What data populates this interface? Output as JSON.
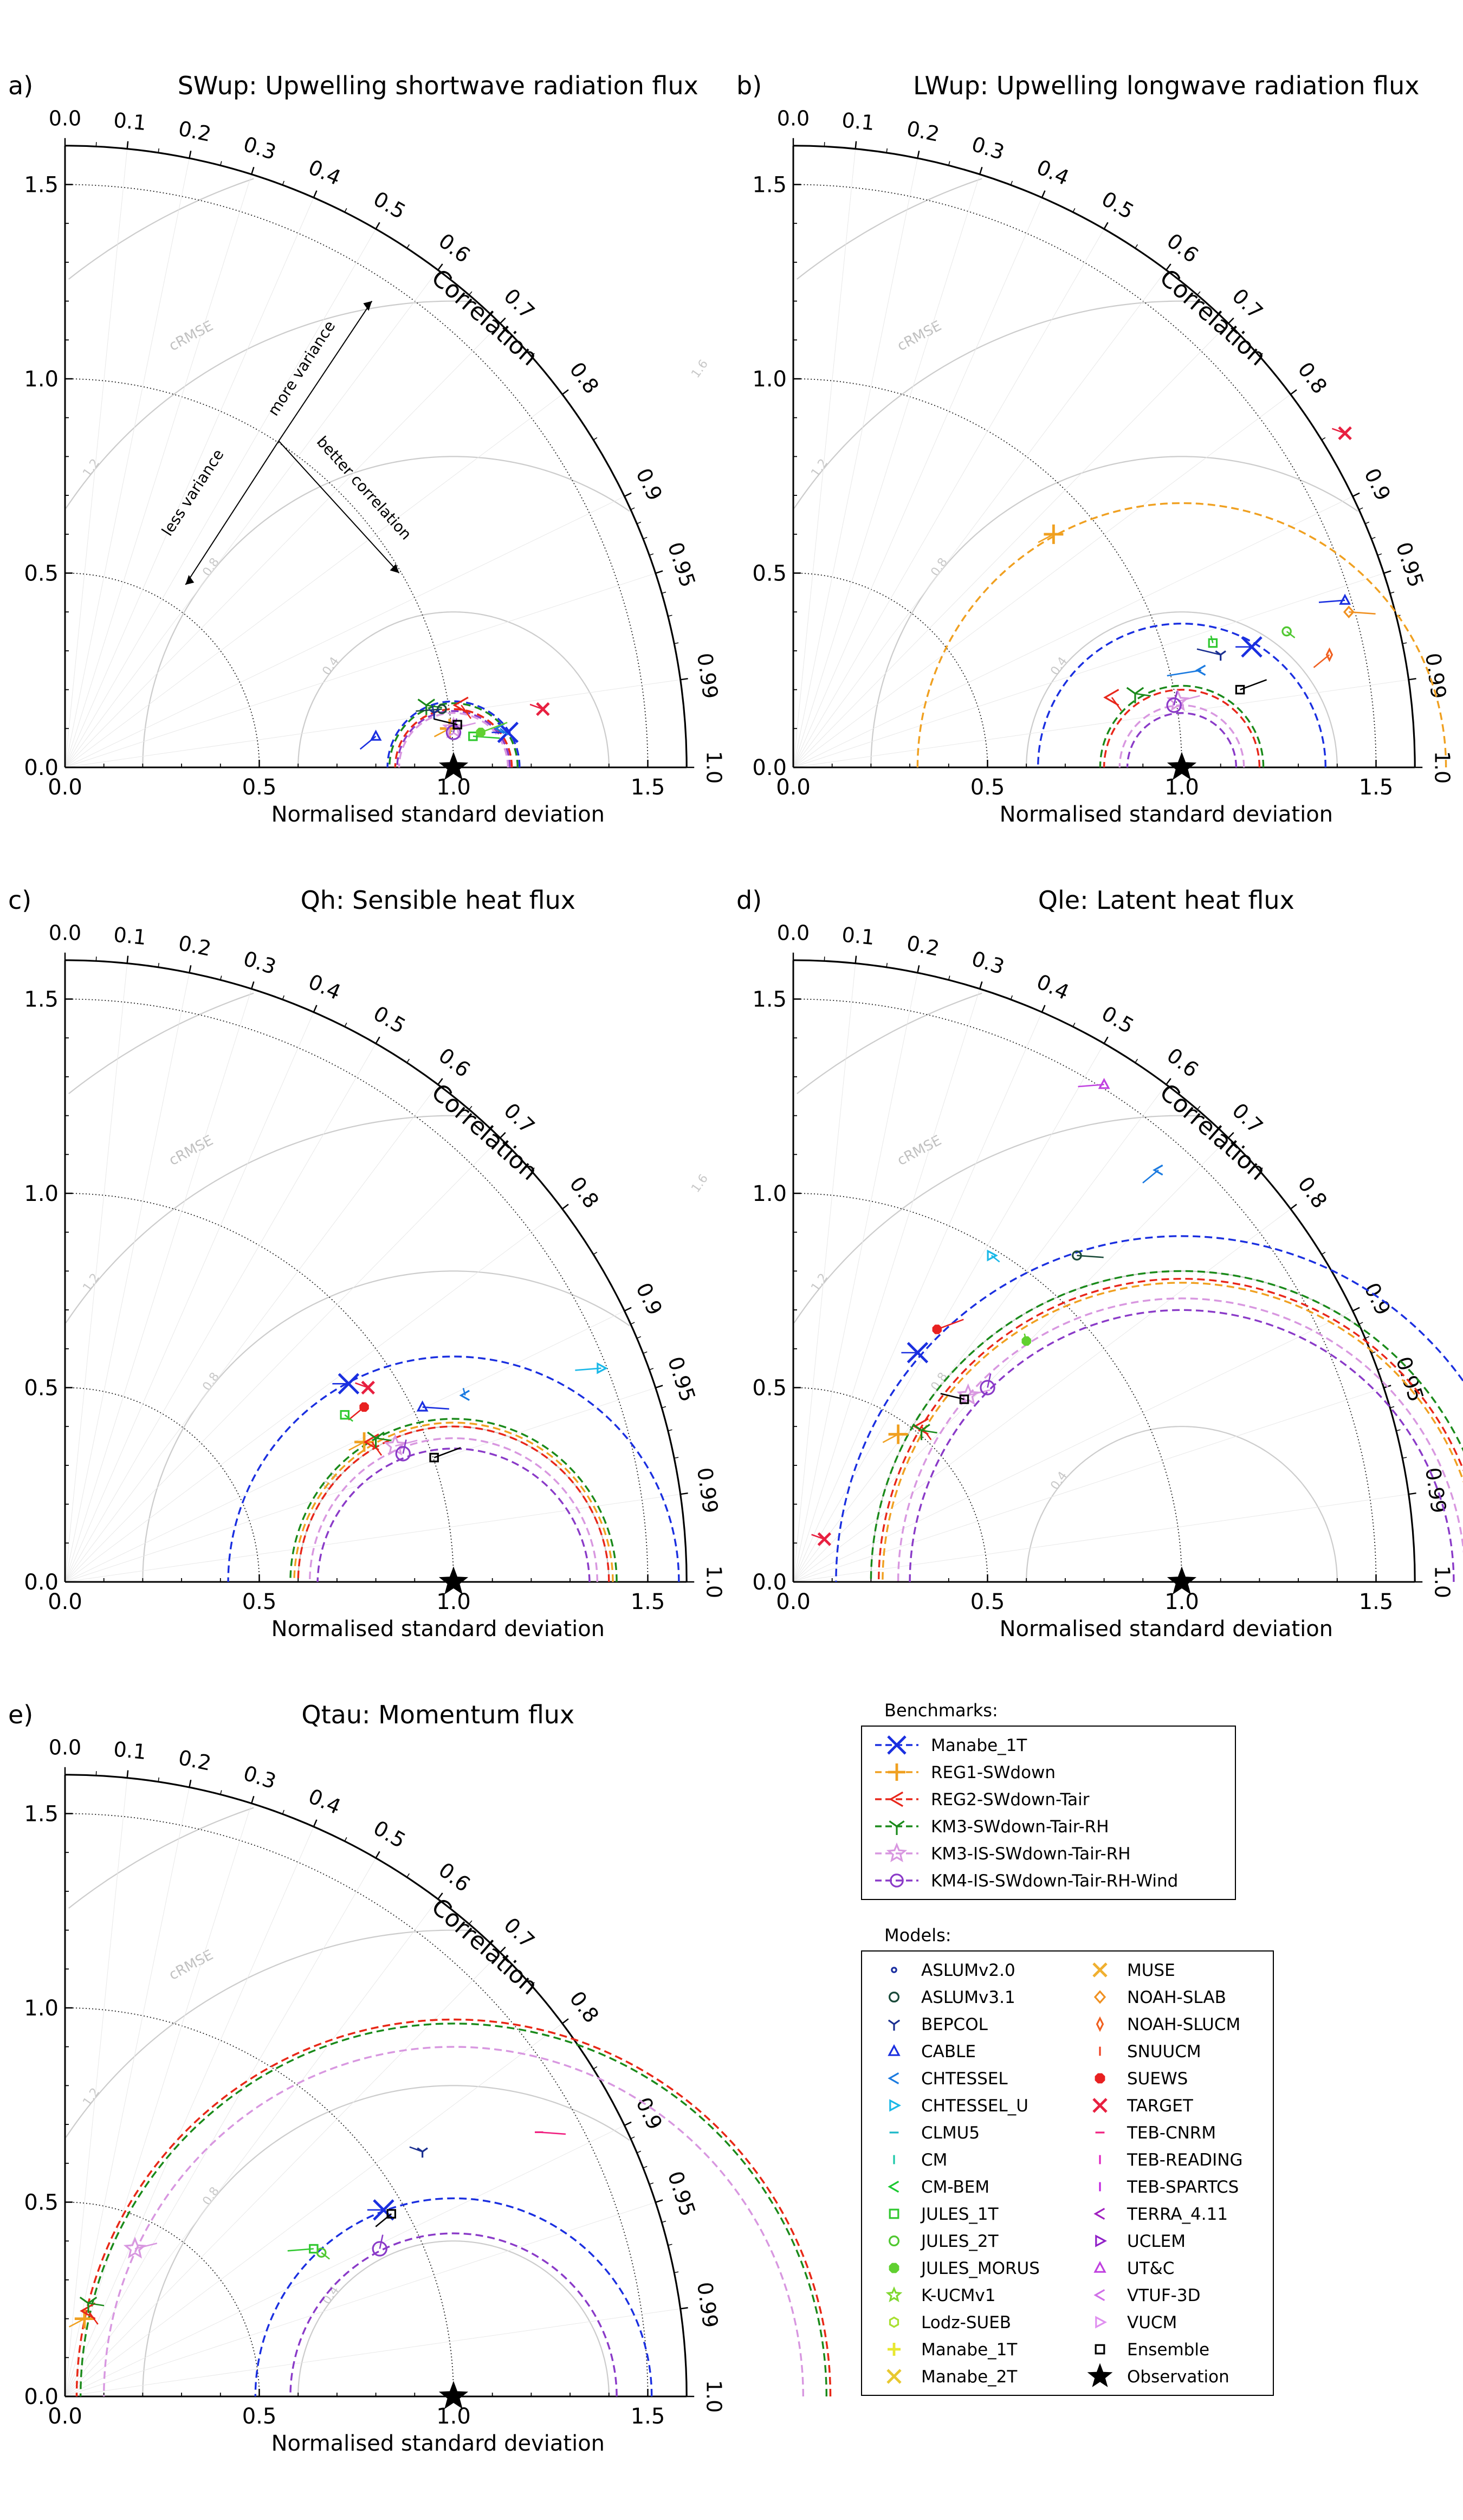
{
  "figure": {
    "benchmarks_title": "Benchmarks:",
    "models_title": "Models:",
    "benchmarks": [
      {
        "name": "Manabe_1T",
        "color": "#1a2fe0",
        "marker": "x"
      },
      {
        "name": "REG1-SWdown",
        "color": "#f0a020",
        "marker": "plus"
      },
      {
        "name": "REG2-SWdown-Tair",
        "color": "#e8261a",
        "marker": "tri_left"
      },
      {
        "name": "KM3-SWdown-Tair-RH",
        "color": "#1a8a1a",
        "marker": "tri_down"
      },
      {
        "name": "KM3-IS-SWdown-Tair-RH",
        "color": "#d897e0",
        "marker": "star"
      },
      {
        "name": "KM4-IS-SWdown-Tair-RH-Wind",
        "color": "#8a3ac8",
        "marker": "circle"
      }
    ],
    "models_col1": [
      {
        "name": "ASLUMv2.0",
        "color": "#1a2fa0",
        "marker": "dot"
      },
      {
        "name": "ASLUMv3.1",
        "color": "#1a4a3a",
        "marker": "circle"
      },
      {
        "name": "BEPCOL",
        "color": "#1a2f90",
        "marker": "tri_down"
      },
      {
        "name": "CABLE",
        "color": "#1a2fe0",
        "marker": "tri_up"
      },
      {
        "name": "CHTESSEL",
        "color": "#1a7ae0",
        "marker": "tri_left"
      },
      {
        "name": "CHTESSEL_U",
        "color": "#1ab8e8",
        "marker": "tri_right"
      },
      {
        "name": "CLMU5",
        "color": "#1ab8c8",
        "marker": "hline"
      },
      {
        "name": "CM",
        "color": "#1ac8a8",
        "marker": "vline"
      },
      {
        "name": "CM-BEM",
        "color": "#1ac830",
        "marker": "tri_left"
      },
      {
        "name": "JULES_1T",
        "color": "#30c830",
        "marker": "square"
      },
      {
        "name": "JULES_2T",
        "color": "#50c830",
        "marker": "circle"
      },
      {
        "name": "JULES_MORUS",
        "color": "#60d030",
        "marker": "octagon"
      },
      {
        "name": "K-UCMv1",
        "color": "#80d830",
        "marker": "star"
      },
      {
        "name": "Lodz-SUEB",
        "color": "#a8e030",
        "marker": "hexagon"
      },
      {
        "name": "Manabe_1T",
        "color": "#e8e830",
        "marker": "plus"
      },
      {
        "name": "Manabe_2T",
        "color": "#e8c830",
        "marker": "x"
      }
    ],
    "models_col2": [
      {
        "name": "MUSE",
        "color": "#f0b030",
        "marker": "x"
      },
      {
        "name": "NOAH-SLAB",
        "color": "#f09020",
        "marker": "diamond"
      },
      {
        "name": "NOAH-SLUCM",
        "color": "#f06020",
        "marker": "thin_diamond"
      },
      {
        "name": "SNUUCM",
        "color": "#f04020",
        "marker": "vline"
      },
      {
        "name": "SUEWS",
        "color": "#e82020",
        "marker": "octagon"
      },
      {
        "name": "TARGET",
        "color": "#e82040",
        "marker": "x"
      },
      {
        "name": "TEB-CNRM",
        "color": "#f02080",
        "marker": "hline"
      },
      {
        "name": "TEB-READING",
        "color": "#e020c0",
        "marker": "vline"
      },
      {
        "name": "TEB-SPARTCS",
        "color": "#c020e0",
        "marker": "vline"
      },
      {
        "name": "TERRA_4.11",
        "color": "#a020c0",
        "marker": "tri_left"
      },
      {
        "name": "UCLEM",
        "color": "#9020c8",
        "marker": "tri_right"
      },
      {
        "name": "UT&C",
        "color": "#c040e0",
        "marker": "tri_up"
      },
      {
        "name": "VTUF-3D",
        "color": "#d070e8",
        "marker": "tri_left"
      },
      {
        "name": "VUCM",
        "color": "#e090f0",
        "marker": "tri_right"
      },
      {
        "name": "Ensemble",
        "color": "#000000",
        "marker": "square"
      },
      {
        "name": "Observation",
        "color": "#000000",
        "marker": "bigstar"
      }
    ]
  },
  "chart_data": [
    {
      "type": "scatter",
      "panel": "a)",
      "title": "SWup: Upwelling shortwave radiation flux",
      "xlabel": "Normalised standard deviation",
      "ylabel": "",
      "arc_label": "Correlation",
      "crmse_label": "cRMSE",
      "std_ticks": [
        "0.0",
        "0.5",
        "1.0",
        "1.5"
      ],
      "corr_ticks": [
        "0.0",
        "0.1",
        "0.2",
        "0.3",
        "0.4",
        "0.5",
        "0.6",
        "0.7",
        "0.8",
        "0.9",
        "0.95",
        "0.99",
        "1.0"
      ],
      "crmse_ticks": [
        "0.4",
        "0.8",
        "1.2",
        "1.6"
      ],
      "annotations": [
        "more variance",
        "less variance",
        "better correlation"
      ],
      "observation": {
        "x": 1.0,
        "y": 0.0
      },
      "benchmark_radii": [
        {
          "name": "Manabe_1T",
          "radius": 0.17
        },
        {
          "name": "REG1-SWdown",
          "radius": 0.15
        },
        {
          "name": "REG2-SWdown-Tair",
          "radius": 0.15
        },
        {
          "name": "KM3-SWdown-Tair-RH",
          "radius": 0.165
        },
        {
          "name": "KM3-IS-SWdown-Tair-RH",
          "radius": 0.14
        },
        {
          "name": "KM4-IS-SWdown-Tair-RH-Wind",
          "radius": 0.145
        }
      ],
      "points": [
        {
          "name": "Manabe_1T",
          "x": 1.14,
          "y": 0.09
        },
        {
          "name": "REG1-SWdown",
          "x": 0.99,
          "y": 0.1
        },
        {
          "name": "REG2-SWdown-Tair",
          "x": 1.02,
          "y": 0.16
        },
        {
          "name": "KM3-SWdown-Tair-RH",
          "x": 0.93,
          "y": 0.16
        },
        {
          "name": "KM3-IS-SWdown-Tair-RH",
          "x": 1.0,
          "y": 0.1
        },
        {
          "name": "KM4-IS-SWdown-Tair-RH-Wind",
          "x": 1.0,
          "y": 0.09
        },
        {
          "name": "TARGET",
          "x": 1.23,
          "y": 0.15
        },
        {
          "name": "ASLUMv3.1",
          "x": 0.97,
          "y": 0.15
        },
        {
          "name": "CABLE",
          "x": 0.8,
          "y": 0.08
        },
        {
          "name": "CHTESSEL",
          "x": 1.12,
          "y": 0.1
        },
        {
          "name": "JULES_1T",
          "x": 1.05,
          "y": 0.08
        },
        {
          "name": "JULES_MORUS",
          "x": 1.07,
          "y": 0.09
        },
        {
          "name": "BEPCOL",
          "x": 0.95,
          "y": 0.14
        },
        {
          "name": "Ensemble",
          "x": 1.01,
          "y": 0.11
        }
      ]
    },
    {
      "type": "scatter",
      "panel": "b)",
      "title": "LWup: Upwelling longwave radiation flux",
      "xlabel": "Normalised standard deviation",
      "ylabel": "",
      "arc_label": "Correlation",
      "crmse_label": "cRMSE",
      "std_ticks": [
        "0.0",
        "0.5",
        "1.0",
        "1.5"
      ],
      "corr_ticks": [
        "0.0",
        "0.1",
        "0.2",
        "0.3",
        "0.4",
        "0.5",
        "0.6",
        "0.7",
        "0.8",
        "0.9",
        "0.95",
        "0.99",
        "1.0"
      ],
      "crmse_ticks": [
        "0.4",
        "0.8",
        "1.2",
        "1.6"
      ],
      "observation": {
        "x": 1.0,
        "y": 0.0
      },
      "benchmark_radii": [
        {
          "name": "Manabe_1T",
          "radius": 0.37
        },
        {
          "name": "REG1-SWdown",
          "radius": 0.68
        },
        {
          "name": "REG2-SWdown-Tair",
          "radius": 0.2
        },
        {
          "name": "KM3-SWdown-Tair-RH",
          "radius": 0.21
        },
        {
          "name": "KM3-IS-SWdown-Tair-RH",
          "radius": 0.16
        },
        {
          "name": "KM4-IS-SWdown-Tair-RH-Wind",
          "radius": 0.14
        }
      ],
      "points": [
        {
          "name": "Manabe_1T",
          "x": 1.18,
          "y": 0.31
        },
        {
          "name": "REG1-SWdown",
          "x": 0.67,
          "y": 0.6
        },
        {
          "name": "REG2-SWdown-Tair",
          "x": 0.82,
          "y": 0.18
        },
        {
          "name": "KM3-SWdown-Tair-RH",
          "x": 0.88,
          "y": 0.19
        },
        {
          "name": "KM3-IS-SWdown-Tair-RH",
          "x": 0.99,
          "y": 0.17
        },
        {
          "name": "KM4-IS-SWdown-Tair-RH-Wind",
          "x": 0.98,
          "y": 0.16
        },
        {
          "name": "TARGET",
          "x": 1.42,
          "y": 0.86
        },
        {
          "name": "CABLE",
          "x": 1.42,
          "y": 0.43
        },
        {
          "name": "NOAH-SLUCM",
          "x": 1.38,
          "y": 0.29
        },
        {
          "name": "JULES_2T",
          "x": 1.27,
          "y": 0.35
        },
        {
          "name": "NOAH-SLAB",
          "x": 1.43,
          "y": 0.4
        },
        {
          "name": "Ensemble",
          "x": 1.15,
          "y": 0.2
        },
        {
          "name": "JULES_1T",
          "x": 1.08,
          "y": 0.32
        },
        {
          "name": "BEPCOL",
          "x": 1.1,
          "y": 0.29
        },
        {
          "name": "CHTESSEL",
          "x": 1.05,
          "y": 0.25
        }
      ]
    },
    {
      "type": "scatter",
      "panel": "c)",
      "title": "Qh: Sensible heat flux",
      "xlabel": "Normalised standard deviation",
      "ylabel": "",
      "arc_label": "Correlation",
      "crmse_label": "cRMSE",
      "std_ticks": [
        "0.0",
        "0.5",
        "1.0",
        "1.5"
      ],
      "corr_ticks": [
        "0.0",
        "0.1",
        "0.2",
        "0.3",
        "0.4",
        "0.5",
        "0.6",
        "0.7",
        "0.8",
        "0.9",
        "0.95",
        "0.99",
        "1.0"
      ],
      "crmse_ticks": [
        "0.4",
        "0.8",
        "1.2",
        "1.6"
      ],
      "observation": {
        "x": 1.0,
        "y": 0.0
      },
      "benchmark_radii": [
        {
          "name": "Manabe_1T",
          "radius": 0.58
        },
        {
          "name": "REG1-SWdown",
          "radius": 0.41
        },
        {
          "name": "REG2-SWdown-Tair",
          "radius": 0.4
        },
        {
          "name": "KM3-SWdown-Tair-RH",
          "radius": 0.42
        },
        {
          "name": "KM3-IS-SWdown-Tair-RH",
          "radius": 0.37
        },
        {
          "name": "KM4-IS-SWdown-Tair-RH-Wind",
          "radius": 0.35
        }
      ],
      "points": [
        {
          "name": "Manabe_1T",
          "x": 0.73,
          "y": 0.51
        },
        {
          "name": "REG1-SWdown",
          "x": 0.77,
          "y": 0.36
        },
        {
          "name": "REG2-SWdown-Tair",
          "x": 0.79,
          "y": 0.36
        },
        {
          "name": "KM3-SWdown-Tair-RH",
          "x": 0.8,
          "y": 0.37
        },
        {
          "name": "KM3-IS-SWdown-Tair-RH",
          "x": 0.85,
          "y": 0.35
        },
        {
          "name": "KM4-IS-SWdown-Tair-RH-Wind",
          "x": 0.87,
          "y": 0.33
        },
        {
          "name": "TARGET",
          "x": 0.78,
          "y": 0.5
        },
        {
          "name": "CHTESSEL_U",
          "x": 1.38,
          "y": 0.55
        },
        {
          "name": "SUEWS",
          "x": 0.77,
          "y": 0.45
        },
        {
          "name": "JULES_1T",
          "x": 0.72,
          "y": 0.43
        },
        {
          "name": "CABLE",
          "x": 0.92,
          "y": 0.45
        },
        {
          "name": "Ensemble",
          "x": 0.95,
          "y": 0.32
        },
        {
          "name": "CHTESSEL",
          "x": 1.03,
          "y": 0.48
        }
      ]
    },
    {
      "type": "scatter",
      "panel": "d)",
      "title": "Qle: Latent heat flux",
      "xlabel": "Normalised standard deviation",
      "ylabel": "",
      "arc_label": "Correlation",
      "crmse_label": "cRMSE",
      "std_ticks": [
        "0.0",
        "0.5",
        "1.0",
        "1.5"
      ],
      "corr_ticks": [
        "0.0",
        "0.1",
        "0.2",
        "0.3",
        "0.4",
        "0.5",
        "0.6",
        "0.7",
        "0.8",
        "0.9",
        "0.95",
        "0.99",
        "1.0"
      ],
      "crmse_ticks": [
        "0.4",
        "0.8",
        "1.2",
        "1.6"
      ],
      "observation": {
        "x": 1.0,
        "y": 0.0
      },
      "benchmark_radii": [
        {
          "name": "Manabe_1T",
          "radius": 0.89
        },
        {
          "name": "REG1-SWdown",
          "radius": 0.77
        },
        {
          "name": "REG2-SWdown-Tair",
          "radius": 0.78
        },
        {
          "name": "KM3-SWdown-Tair-RH",
          "radius": 0.8
        },
        {
          "name": "KM3-IS-SWdown-Tair-RH",
          "radius": 0.73
        },
        {
          "name": "KM4-IS-SWdown-Tair-RH-Wind",
          "radius": 0.7
        }
      ],
      "points": [
        {
          "name": "Manabe_1T",
          "x": 0.32,
          "y": 0.59
        },
        {
          "name": "REG1-SWdown",
          "x": 0.27,
          "y": 0.38
        },
        {
          "name": "REG2-SWdown-Tair",
          "x": 0.33,
          "y": 0.4
        },
        {
          "name": "KM3-SWdown-Tair-RH",
          "x": 0.33,
          "y": 0.39
        },
        {
          "name": "KM3-IS-SWdown-Tair-RH",
          "x": 0.45,
          "y": 0.48
        },
        {
          "name": "KM4-IS-SWdown-Tair-RH-Wind",
          "x": 0.5,
          "y": 0.5
        },
        {
          "name": "TARGET",
          "x": 0.08,
          "y": 0.11
        },
        {
          "name": "UT&C",
          "x": 0.8,
          "y": 1.28
        },
        {
          "name": "CHTESSEL",
          "x": 0.94,
          "y": 1.06
        },
        {
          "name": "CHTESSEL_U",
          "x": 0.51,
          "y": 0.84
        },
        {
          "name": "ASLUMv3.1",
          "x": 0.73,
          "y": 0.84
        },
        {
          "name": "SUEWS",
          "x": 0.37,
          "y": 0.65
        },
        {
          "name": "JULES_MORUS",
          "x": 0.6,
          "y": 0.62
        },
        {
          "name": "Ensemble",
          "x": 0.44,
          "y": 0.47
        }
      ]
    },
    {
      "type": "scatter",
      "panel": "e)",
      "title": "Qtau: Momentum flux",
      "xlabel": "Normalised standard deviation",
      "ylabel": "",
      "arc_label": "Correlation",
      "crmse_label": "cRMSE",
      "std_ticks": [
        "0.0",
        "0.5",
        "1.0",
        "1.5"
      ],
      "corr_ticks": [
        "0.0",
        "0.1",
        "0.2",
        "0.3",
        "0.4",
        "0.5",
        "0.6",
        "0.7",
        "0.8",
        "0.9",
        "0.95",
        "0.99",
        "1.0"
      ],
      "crmse_ticks": [
        "0.4",
        "0.8",
        "1.2",
        "1.6"
      ],
      "observation": {
        "x": 1.0,
        "y": 0.0
      },
      "benchmark_radii": [
        {
          "name": "Manabe_1T",
          "radius": 0.51
        },
        {
          "name": "REG1-SWdown",
          "radius": 0.97
        },
        {
          "name": "REG2-SWdown-Tair",
          "radius": 0.97
        },
        {
          "name": "KM3-SWdown-Tair-RH",
          "radius": 0.96
        },
        {
          "name": "KM3-IS-SWdown-Tair-RH",
          "radius": 0.9
        },
        {
          "name": "KM4-IS-SWdown-Tair-RH-Wind",
          "radius": 0.42
        }
      ],
      "points": [
        {
          "name": "Manabe_1T",
          "x": 0.82,
          "y": 0.48
        },
        {
          "name": "REG1-SWdown",
          "x": 0.05,
          "y": 0.2
        },
        {
          "name": "REG2-SWdown-Tair",
          "x": 0.06,
          "y": 0.22
        },
        {
          "name": "KM3-SWdown-Tair-RH",
          "x": 0.06,
          "y": 0.24
        },
        {
          "name": "KM3-IS-SWdown-Tair-RH",
          "x": 0.18,
          "y": 0.38
        },
        {
          "name": "KM4-IS-SWdown-Tair-RH-Wind",
          "x": 0.81,
          "y": 0.38
        },
        {
          "name": "BEPCOL",
          "x": 0.92,
          "y": 0.63
        },
        {
          "name": "JULES_1T",
          "x": 0.64,
          "y": 0.38
        },
        {
          "name": "Ensemble",
          "x": 0.84,
          "y": 0.47
        },
        {
          "name": "JULES_2T",
          "x": 0.66,
          "y": 0.37
        },
        {
          "name": "TEB-CNRM",
          "x": 1.22,
          "y": 0.68
        }
      ]
    }
  ]
}
